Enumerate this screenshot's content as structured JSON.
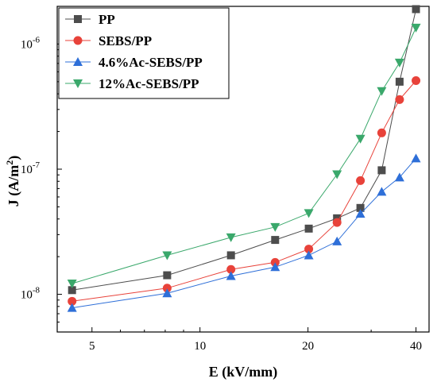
{
  "chart_data": {
    "type": "line",
    "xlabel": "E (kV/mm)",
    "ylabel_main": "J (A/m",
    "ylabel_sup": "2",
    "ylabel_end": ")",
    "x_scale": "log",
    "y_scale": "log",
    "xlim": [
      4.0,
      43.5
    ],
    "ylim": [
      5e-09,
      2e-06
    ],
    "x_ticks": [
      5,
      10,
      20,
      40
    ],
    "x_tick_labels": [
      "5",
      "10",
      "20",
      "40"
    ],
    "y_ticks": [
      1e-08,
      1e-07,
      1e-06
    ],
    "y_tick_labels": [
      {
        "base": "10",
        "exp": "-8"
      },
      {
        "base": "10",
        "exp": "-7"
      },
      {
        "base": "10",
        "exp": "-6"
      }
    ],
    "grid": false,
    "legend_position": "top-left",
    "x": [
      4.4,
      8.1,
      12.2,
      16.2,
      20.1,
      24.1,
      28.0,
      32.1,
      36.0,
      40.0
    ],
    "series": [
      {
        "name": "PP",
        "color": "#4d4d4d",
        "marker": "square",
        "values": [
          1.08e-08,
          1.42e-08,
          2.05e-08,
          2.72e-08,
          3.35e-08,
          4.05e-08,
          4.9e-08,
          9.8e-08,
          5e-07,
          1.9e-06
        ]
      },
      {
        "name": "SEBS/PP",
        "color": "#e8423a",
        "marker": "circle",
        "values": [
          8.8e-09,
          1.12e-08,
          1.58e-08,
          1.8e-08,
          2.3e-08,
          3.75e-08,
          8.1e-08,
          1.95e-07,
          3.6e-07,
          5.1e-07
        ]
      },
      {
        "name": "4.6%Ac-SEBS/PP",
        "color": "#2e6fd8",
        "marker": "triangle-up",
        "values": [
          7.8e-09,
          1.02e-08,
          1.4e-08,
          1.65e-08,
          2.05e-08,
          2.65e-08,
          4.4e-08,
          6.6e-08,
          8.6e-08,
          1.22e-07
        ]
      },
      {
        "name": "12%Ac-SEBS/PP",
        "color": "#3aa86b",
        "marker": "triangle-down",
        "values": [
          1.22e-08,
          2.05e-08,
          2.85e-08,
          3.45e-08,
          4.45e-08,
          9.1e-08,
          1.75e-07,
          4.2e-07,
          7.1e-07,
          1.35e-06
        ]
      }
    ]
  }
}
